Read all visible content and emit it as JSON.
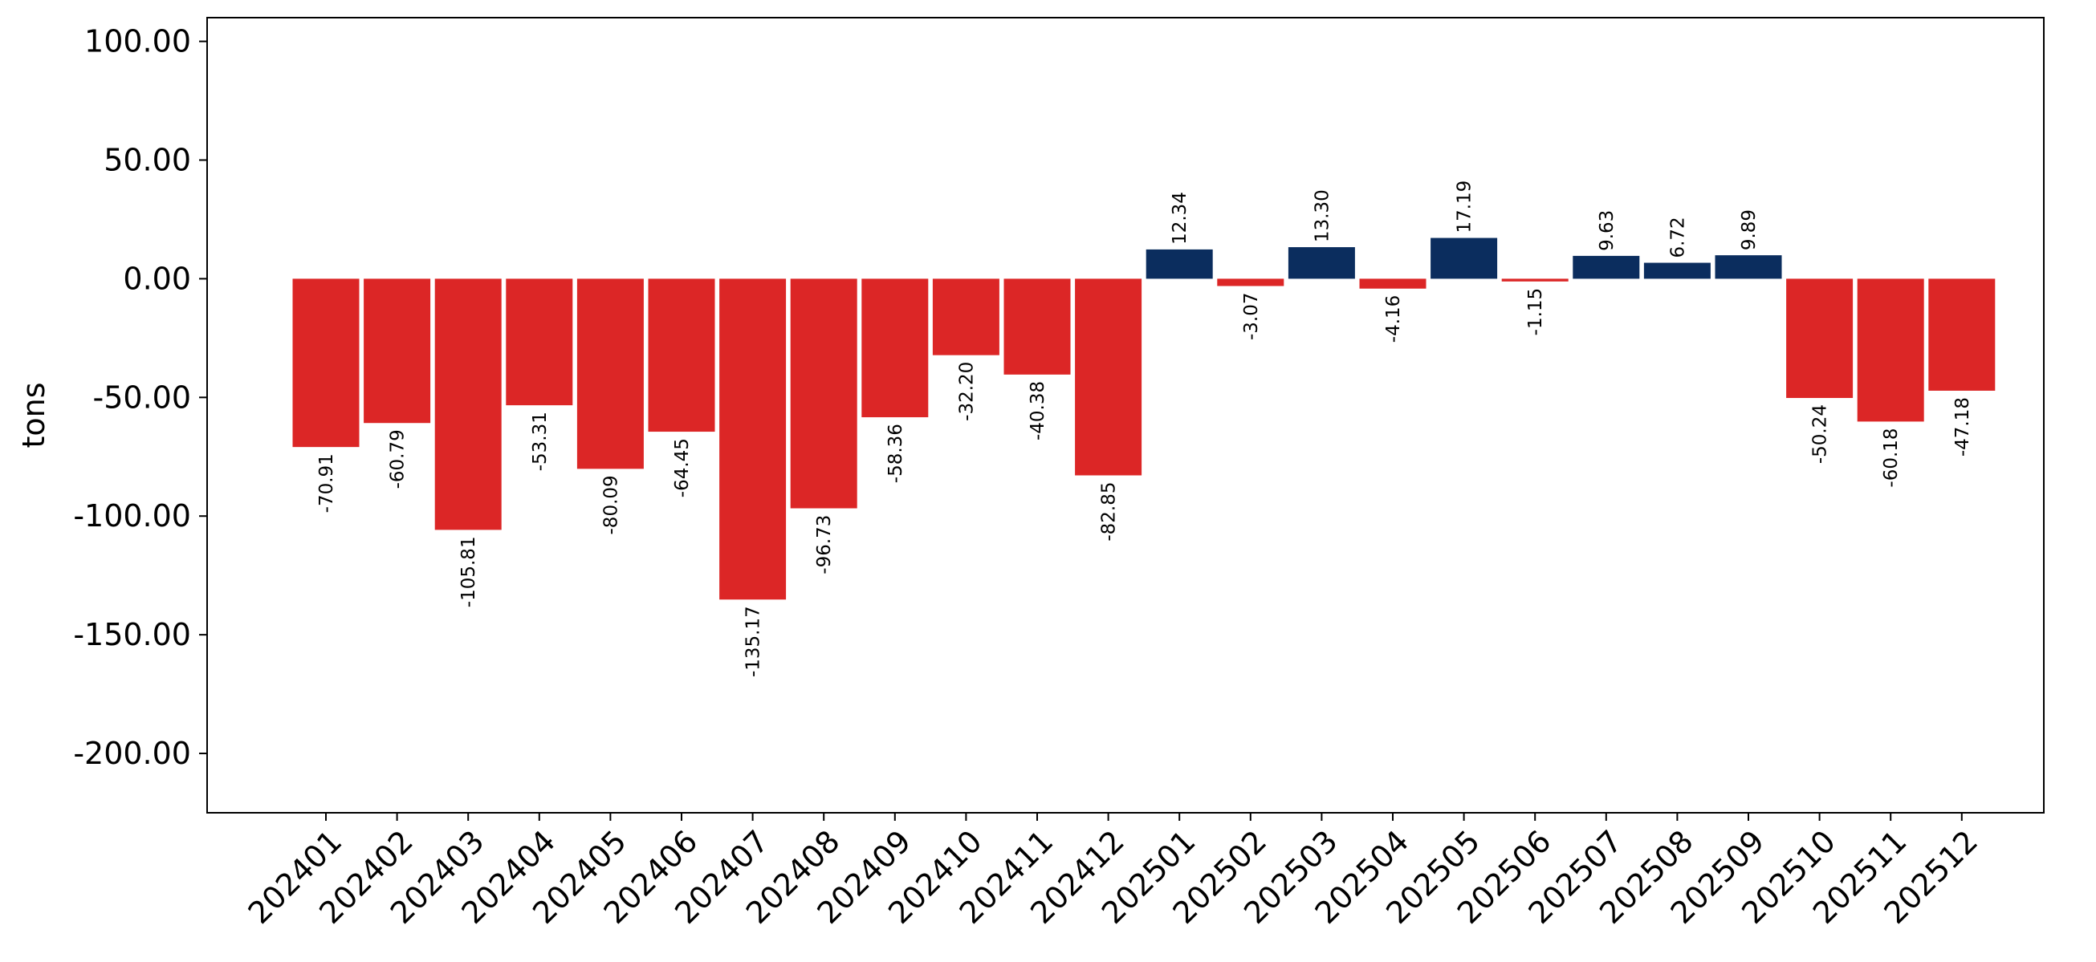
{
  "chart_data": {
    "type": "bar",
    "title": "",
    "xlabel": "",
    "ylabel": "tons",
    "ylim": [
      -225,
      110
    ],
    "yticks": [
      100,
      50,
      0,
      -50,
      -100,
      -150,
      -200
    ],
    "ytick_labels": [
      "100.00",
      "50.00",
      "0.00",
      "-50.00",
      "-100.00",
      "-150.00",
      "-200.00"
    ],
    "grid": false,
    "legend": "none",
    "categories": [
      "202401",
      "202402",
      "202403",
      "202404",
      "202405",
      "202406",
      "202407",
      "202408",
      "202409",
      "202410",
      "202411",
      "202412",
      "202501",
      "202502",
      "202503",
      "202504",
      "202505",
      "202506",
      "202507",
      "202508",
      "202509",
      "202510",
      "202511",
      "202512"
    ],
    "values": [
      -70.91,
      -60.79,
      -105.81,
      -53.31,
      -80.09,
      -64.45,
      -135.17,
      -96.73,
      -58.36,
      -32.2,
      -40.38,
      -82.85,
      12.34,
      -3.07,
      13.3,
      -4.16,
      17.19,
      -1.15,
      9.63,
      6.72,
      9.89,
      -50.24,
      -60.18,
      -47.18
    ],
    "value_labels": [
      "-70.91",
      "-60.79",
      "-105.81",
      "-53.31",
      "-80.09",
      "-64.45",
      "-135.17",
      "-96.73",
      "-58.36",
      "-32.20",
      "-40.38",
      "-82.85",
      "12.34",
      "-3.07",
      "13.30",
      "-4.16",
      "17.19",
      "-1.15",
      "9.63",
      "6.72",
      "9.89",
      "-50.24",
      "-60.18",
      "-47.18"
    ],
    "colors": {
      "negative": "#dc2626",
      "positive": "#0b2d5e",
      "axis": "#000000"
    }
  }
}
